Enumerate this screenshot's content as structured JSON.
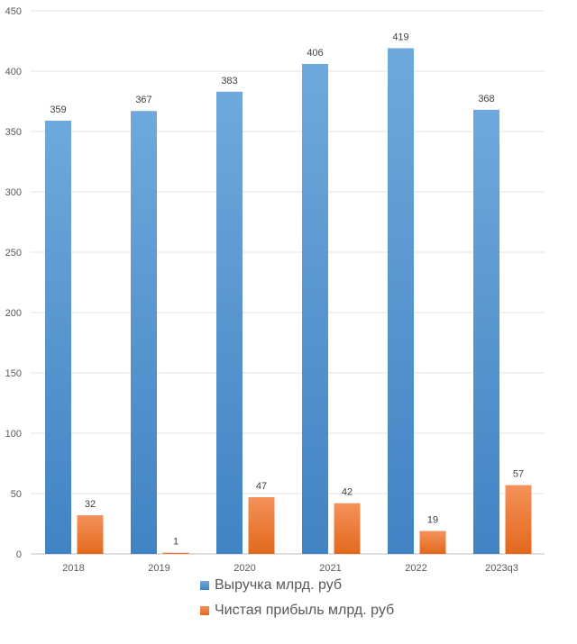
{
  "chart_data": {
    "type": "bar",
    "title": "",
    "xlabel": "",
    "ylabel": "",
    "categories": [
      "2018",
      "2019",
      "2020",
      "2021",
      "2022",
      "2023q3"
    ],
    "ylim": [
      0,
      450
    ],
    "yticks": [
      0,
      50,
      100,
      150,
      200,
      250,
      300,
      350,
      400,
      450
    ],
    "grid": true,
    "legend_position": "bottom",
    "series": [
      {
        "name": "Выручка млрд. руб",
        "values": [
          359,
          367,
          383,
          406,
          419,
          368
        ],
        "color": "#5B9BD5"
      },
      {
        "name": "Чистая прибыль млрд. руб",
        "values": [
          32,
          1,
          47,
          42,
          19,
          57
        ],
        "color": "#ED7D31"
      }
    ]
  }
}
